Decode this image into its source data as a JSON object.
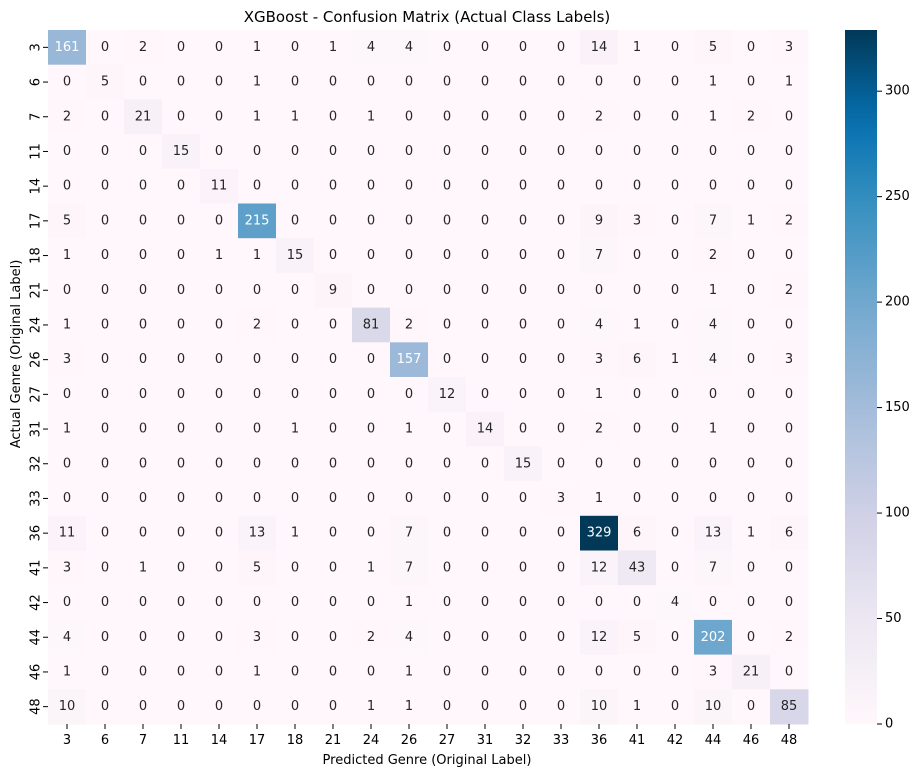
{
  "chart_data": {
    "type": "heatmap",
    "title": "XGBoost - Confusion Matrix (Actual Class Labels)",
    "xlabel": "Predicted Genre (Original Label)",
    "ylabel": "Actual Genre (Original Label)",
    "x_categories": [
      "3",
      "6",
      "7",
      "11",
      "14",
      "17",
      "18",
      "21",
      "24",
      "26",
      "27",
      "31",
      "32",
      "33",
      "36",
      "41",
      "42",
      "44",
      "46",
      "48"
    ],
    "y_categories": [
      "3",
      "6",
      "7",
      "11",
      "14",
      "17",
      "18",
      "21",
      "24",
      "26",
      "27",
      "31",
      "32",
      "33",
      "36",
      "41",
      "42",
      "44",
      "46",
      "48"
    ],
    "values": [
      [
        161,
        0,
        2,
        0,
        0,
        1,
        0,
        1,
        4,
        4,
        0,
        0,
        0,
        0,
        14,
        1,
        0,
        5,
        0,
        3
      ],
      [
        0,
        5,
        0,
        0,
        0,
        1,
        0,
        0,
        0,
        0,
        0,
        0,
        0,
        0,
        0,
        0,
        0,
        1,
        0,
        1
      ],
      [
        2,
        0,
        21,
        0,
        0,
        1,
        1,
        0,
        1,
        0,
        0,
        0,
        0,
        0,
        2,
        0,
        0,
        1,
        2,
        0
      ],
      [
        0,
        0,
        0,
        15,
        0,
        0,
        0,
        0,
        0,
        0,
        0,
        0,
        0,
        0,
        0,
        0,
        0,
        0,
        0,
        0
      ],
      [
        0,
        0,
        0,
        0,
        11,
        0,
        0,
        0,
        0,
        0,
        0,
        0,
        0,
        0,
        0,
        0,
        0,
        0,
        0,
        0
      ],
      [
        5,
        0,
        0,
        0,
        0,
        215,
        0,
        0,
        0,
        0,
        0,
        0,
        0,
        0,
        9,
        3,
        0,
        7,
        1,
        2
      ],
      [
        1,
        0,
        0,
        0,
        1,
        1,
        15,
        0,
        0,
        0,
        0,
        0,
        0,
        0,
        7,
        0,
        0,
        2,
        0,
        0
      ],
      [
        0,
        0,
        0,
        0,
        0,
        0,
        0,
        9,
        0,
        0,
        0,
        0,
        0,
        0,
        0,
        0,
        0,
        1,
        0,
        2
      ],
      [
        1,
        0,
        0,
        0,
        0,
        2,
        0,
        0,
        81,
        2,
        0,
        0,
        0,
        0,
        4,
        1,
        0,
        4,
        0,
        0
      ],
      [
        3,
        0,
        0,
        0,
        0,
        0,
        0,
        0,
        0,
        157,
        0,
        0,
        0,
        0,
        3,
        6,
        1,
        4,
        0,
        3
      ],
      [
        0,
        0,
        0,
        0,
        0,
        0,
        0,
        0,
        0,
        0,
        12,
        0,
        0,
        0,
        1,
        0,
        0,
        0,
        0,
        0
      ],
      [
        1,
        0,
        0,
        0,
        0,
        0,
        1,
        0,
        0,
        1,
        0,
        14,
        0,
        0,
        2,
        0,
        0,
        1,
        0,
        0
      ],
      [
        0,
        0,
        0,
        0,
        0,
        0,
        0,
        0,
        0,
        0,
        0,
        0,
        15,
        0,
        0,
        0,
        0,
        0,
        0,
        0
      ],
      [
        0,
        0,
        0,
        0,
        0,
        0,
        0,
        0,
        0,
        0,
        0,
        0,
        0,
        3,
        1,
        0,
        0,
        0,
        0,
        0
      ],
      [
        11,
        0,
        0,
        0,
        0,
        13,
        1,
        0,
        0,
        7,
        0,
        0,
        0,
        0,
        329,
        6,
        0,
        13,
        1,
        6
      ],
      [
        3,
        0,
        1,
        0,
        0,
        5,
        0,
        0,
        1,
        7,
        0,
        0,
        0,
        0,
        12,
        43,
        0,
        7,
        0,
        0
      ],
      [
        0,
        0,
        0,
        0,
        0,
        0,
        0,
        0,
        0,
        1,
        0,
        0,
        0,
        0,
        0,
        0,
        4,
        0,
        0,
        0
      ],
      [
        4,
        0,
        0,
        0,
        0,
        3,
        0,
        0,
        2,
        4,
        0,
        0,
        0,
        0,
        12,
        5,
        0,
        202,
        0,
        2
      ],
      [
        1,
        0,
        0,
        0,
        0,
        1,
        0,
        0,
        0,
        1,
        0,
        0,
        0,
        0,
        0,
        0,
        0,
        3,
        21,
        0
      ],
      [
        10,
        0,
        0,
        0,
        0,
        0,
        0,
        0,
        1,
        1,
        0,
        0,
        0,
        0,
        10,
        1,
        0,
        10,
        0,
        85
      ]
    ],
    "colormap": "PuBu",
    "colorbar": {
      "min": 0,
      "max": 329,
      "ticks": [
        0,
        50,
        100,
        150,
        200,
        250,
        300
      ]
    },
    "grid": false,
    "legend": "colorbar-right"
  }
}
